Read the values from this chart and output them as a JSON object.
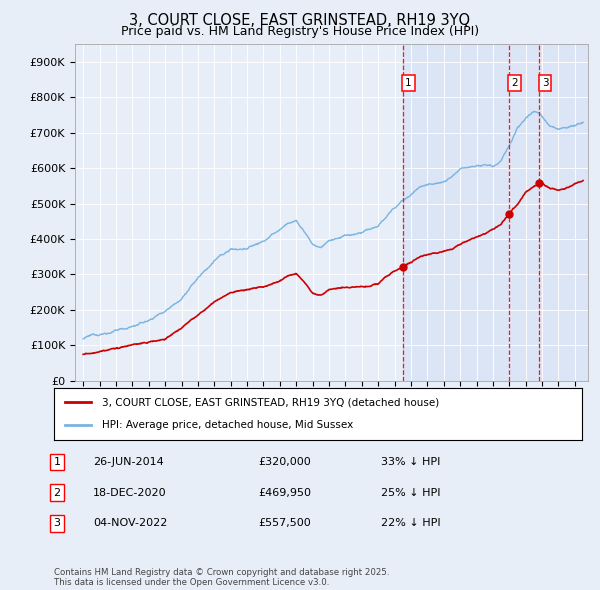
{
  "title": "3, COURT CLOSE, EAST GRINSTEAD, RH19 3YQ",
  "subtitle": "Price paid vs. HM Land Registry's House Price Index (HPI)",
  "title_fontsize": 10.5,
  "subtitle_fontsize": 9,
  "background_color": "#e8eef8",
  "plot_background": "#e8eef8",
  "hpi_color": "#7ab4e0",
  "price_color": "#cc0000",
  "ylim": [
    0,
    950000
  ],
  "yticks": [
    0,
    100000,
    200000,
    300000,
    400000,
    500000,
    600000,
    700000,
    800000,
    900000
  ],
  "ytick_labels": [
    "£0",
    "£100K",
    "£200K",
    "£300K",
    "£400K",
    "£500K",
    "£600K",
    "£700K",
    "£800K",
    "£900K"
  ],
  "transactions": [
    {
      "label": "1",
      "date": "26-JUN-2014",
      "price": 320000,
      "pct": "33%",
      "x_year": 2014.49
    },
    {
      "label": "2",
      "date": "18-DEC-2020",
      "price": 469950,
      "pct": "25%",
      "x_year": 2020.96
    },
    {
      "label": "3",
      "date": "04-NOV-2022",
      "price": 557500,
      "pct": "22%",
      "x_year": 2022.84
    }
  ],
  "legend_line1": "3, COURT CLOSE, EAST GRINSTEAD, RH19 3YQ (detached house)",
  "legend_line2": "HPI: Average price, detached house, Mid Sussex",
  "footnote": "Contains HM Land Registry data © Crown copyright and database right 2025.\nThis data is licensed under the Open Government Licence v3.0.",
  "xlim_start": 1994.5,
  "xlim_end": 2025.8
}
